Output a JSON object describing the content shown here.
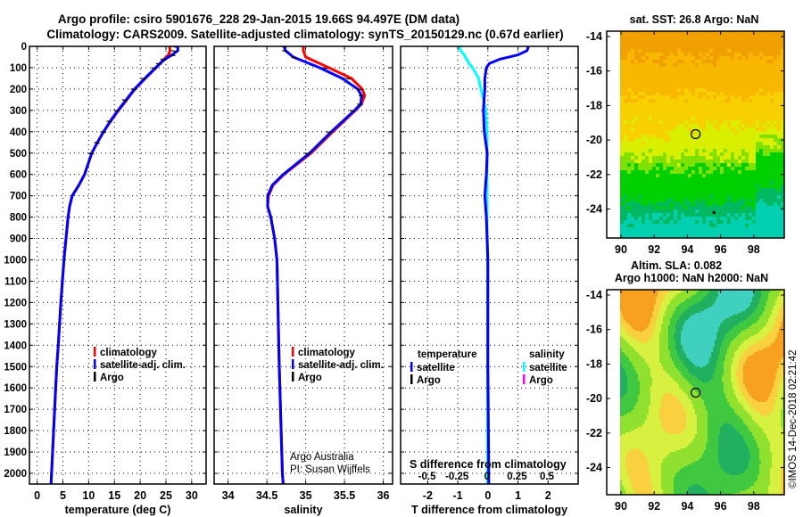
{
  "title": {
    "line1": "Argo profile: csiro 5901676_228 29-Jan-2015 19.66S 94.497E (DM data)",
    "line2": "Climatology: CARS2009. Satellite-adjusted climatology: synTS_20150129.nc (0.67d earlier)"
  },
  "colors": {
    "climatology": "#ff0000",
    "satellite": "#0000ff",
    "argo": "#000000",
    "sal_satellite": "#00ffff",
    "sal_argo": "#ff00ff"
  },
  "depth_ticks": [
    0,
    100,
    200,
    300,
    400,
    500,
    600,
    700,
    800,
    900,
    1000,
    1100,
    1200,
    1300,
    1400,
    1500,
    1600,
    1700,
    1800,
    1900,
    2000
  ],
  "chart_data": [
    {
      "type": "line",
      "name": "temperature",
      "xlabel": "temperature (deg C)",
      "ylabel": "depth",
      "xlim": [
        -1.5,
        32.8
      ],
      "ylim": [
        2050,
        0
      ],
      "xticks": [
        0,
        5,
        10,
        15,
        20,
        25,
        30
      ],
      "grid": true,
      "legend": {
        "placement": "bottom-left",
        "entries": [
          "climatology",
          "satellite-adj. clim.",
          "Argo"
        ]
      },
      "depth": [
        0,
        20,
        40,
        60,
        80,
        100,
        150,
        200,
        250,
        300,
        350,
        400,
        450,
        500,
        600,
        650,
        700,
        750,
        800,
        900,
        1000,
        1200,
        1400,
        1500,
        1600,
        1800,
        2000,
        2050
      ],
      "series": [
        {
          "name": "climatology",
          "values": [
            25.7,
            25.8,
            25.5,
            24.6,
            23.8,
            23.1,
            21.0,
            19.0,
            17.4,
            15.8,
            14.3,
            12.9,
            11.7,
            10.6,
            9.2,
            8.1,
            6.8,
            6.3,
            6.0,
            5.6,
            5.2,
            4.6,
            4.1,
            3.8,
            3.6,
            3.2,
            2.8,
            2.7
          ]
        },
        {
          "name": "satellite-adj. clim.",
          "values": [
            27.3,
            27.3,
            26.2,
            24.8,
            23.9,
            23.0,
            20.9,
            18.9,
            17.3,
            15.7,
            14.2,
            12.9,
            11.7,
            10.6,
            9.2,
            8.1,
            6.8,
            6.3,
            6.0,
            5.6,
            5.2,
            4.6,
            4.1,
            3.8,
            3.6,
            3.2,
            2.8,
            2.7
          ]
        },
        {
          "name": "Argo",
          "values": [
            26.6,
            26.6,
            26.3,
            24.5,
            23.6,
            22.7,
            20.6,
            18.7,
            17.0,
            15.4,
            14.0,
            12.8,
            11.6,
            10.5,
            9.1,
            8.0,
            6.8,
            6.3,
            6.0,
            5.6,
            5.2,
            4.6,
            4.1,
            3.8,
            3.6,
            3.2,
            2.8,
            2.7
          ]
        }
      ]
    },
    {
      "type": "line",
      "name": "salinity",
      "xlabel": "salinity",
      "xlim": [
        33.82,
        36.12
      ],
      "ylim": [
        2050,
        0
      ],
      "xticks": [
        34,
        34.5,
        35,
        35.5,
        36
      ],
      "grid": true,
      "legend": {
        "placement": "bottom-right",
        "entries": [
          "climatology",
          "satellite-adj. clim.",
          "Argo"
        ]
      },
      "annotations": [
        "Argo Australia",
        "PI: Susan Wijffels"
      ],
      "depth": [
        0,
        20,
        50,
        100,
        150,
        200,
        230,
        270,
        300,
        400,
        500,
        600,
        650,
        700,
        750,
        800,
        900,
        1000,
        1500,
        2000,
        2050
      ],
      "series": [
        {
          "name": "climatology",
          "values": [
            34.97,
            34.97,
            35.0,
            35.3,
            35.59,
            35.73,
            35.76,
            35.72,
            35.64,
            35.35,
            35.07,
            34.72,
            34.58,
            34.52,
            34.51,
            34.55,
            34.6,
            34.63,
            34.66,
            34.7,
            34.71
          ]
        },
        {
          "name": "satellite-adj. clim.",
          "values": [
            34.72,
            34.74,
            34.84,
            35.18,
            35.47,
            35.67,
            35.72,
            35.71,
            35.63,
            35.33,
            35.05,
            34.71,
            34.57,
            34.51,
            34.51,
            34.55,
            34.6,
            34.63,
            34.66,
            34.7,
            34.71
          ]
        },
        {
          "name": "Argo",
          "values": [
            34.72,
            34.73,
            34.85,
            35.25,
            35.55,
            35.7,
            35.72,
            35.7,
            35.6,
            35.3,
            35.02,
            34.7,
            34.56,
            34.51,
            34.51,
            34.55,
            34.6,
            34.63,
            34.66,
            34.7,
            34.71
          ]
        }
      ]
    },
    {
      "type": "line",
      "name": "difference",
      "xlabel": "T difference from climatology",
      "xlabel2": "S difference from climatology",
      "xlim": [
        -2.9,
        3.0
      ],
      "xlim_S": [
        -0.72,
        0.76
      ],
      "ylim": [
        2050,
        0
      ],
      "xticks": [
        -2,
        -1,
        0,
        1,
        2
      ],
      "xticks_S": [
        "-0.5",
        "-0.25",
        "0",
        "0.25",
        "0.5"
      ],
      "xticks_S_values": [
        -0.5,
        -0.25,
        0,
        0.25,
        0.5
      ],
      "grid": true,
      "legend": {
        "placement": "bottom",
        "temperature_title": "temperature",
        "salinity_title": "salinity",
        "entries": [
          "satellite",
          "Argo",
          "satellite",
          "Argo"
        ]
      },
      "depth": [
        0,
        20,
        40,
        60,
        80,
        100,
        150,
        200,
        300,
        400,
        500,
        600,
        700,
        800,
        1000,
        1500,
        2000,
        2050
      ],
      "series": [
        {
          "name": "T satellite",
          "axis": "T",
          "values": [
            1.35,
            1.3,
            1.0,
            0.4,
            0.05,
            -0.05,
            -0.1,
            -0.1,
            -0.15,
            -0.12,
            -0.02,
            -0.05,
            -0.1,
            -0.05,
            0.0,
            0.0,
            0.03,
            0.03
          ]
        },
        {
          "name": "S satellite",
          "axis": "S",
          "values": [
            -0.23,
            -0.22,
            -0.19,
            -0.17,
            -0.15,
            -0.12,
            -0.07,
            -0.05,
            -0.01,
            0.0,
            0.0,
            0.0,
            0.0,
            0.0,
            0.005,
            0.005,
            0.005,
            0.005
          ]
        }
      ]
    }
  ],
  "maps": {
    "sst": {
      "title": "sat. SST: 26.8 Argo: NaN",
      "xticks": [
        "90",
        "92",
        "94",
        "96",
        "98"
      ],
      "yticks": [
        "-14",
        "-16",
        "-18",
        "-20",
        "-22",
        "-24"
      ]
    },
    "sla": {
      "title1": "Altim. SLA: 0.082",
      "title2": "Argo h1000: NaN h2000: NaN",
      "xticks": [
        "90",
        "92",
        "94",
        "96",
        "98"
      ],
      "yticks": [
        "-14",
        "-16",
        "-18",
        "-20",
        "-22",
        "-24"
      ]
    },
    "float_position": {
      "lon": 94.497,
      "lat": -19.66
    }
  },
  "legend_labels": {
    "climatology": "climatology",
    "satellite_adj": "satellite-adj. clim.",
    "argo": "Argo",
    "temperature": "temperature",
    "salinity": "salinity",
    "satellite": "satellite"
  },
  "credit": "©IMOS 14-Dec-2018 02:21:42"
}
